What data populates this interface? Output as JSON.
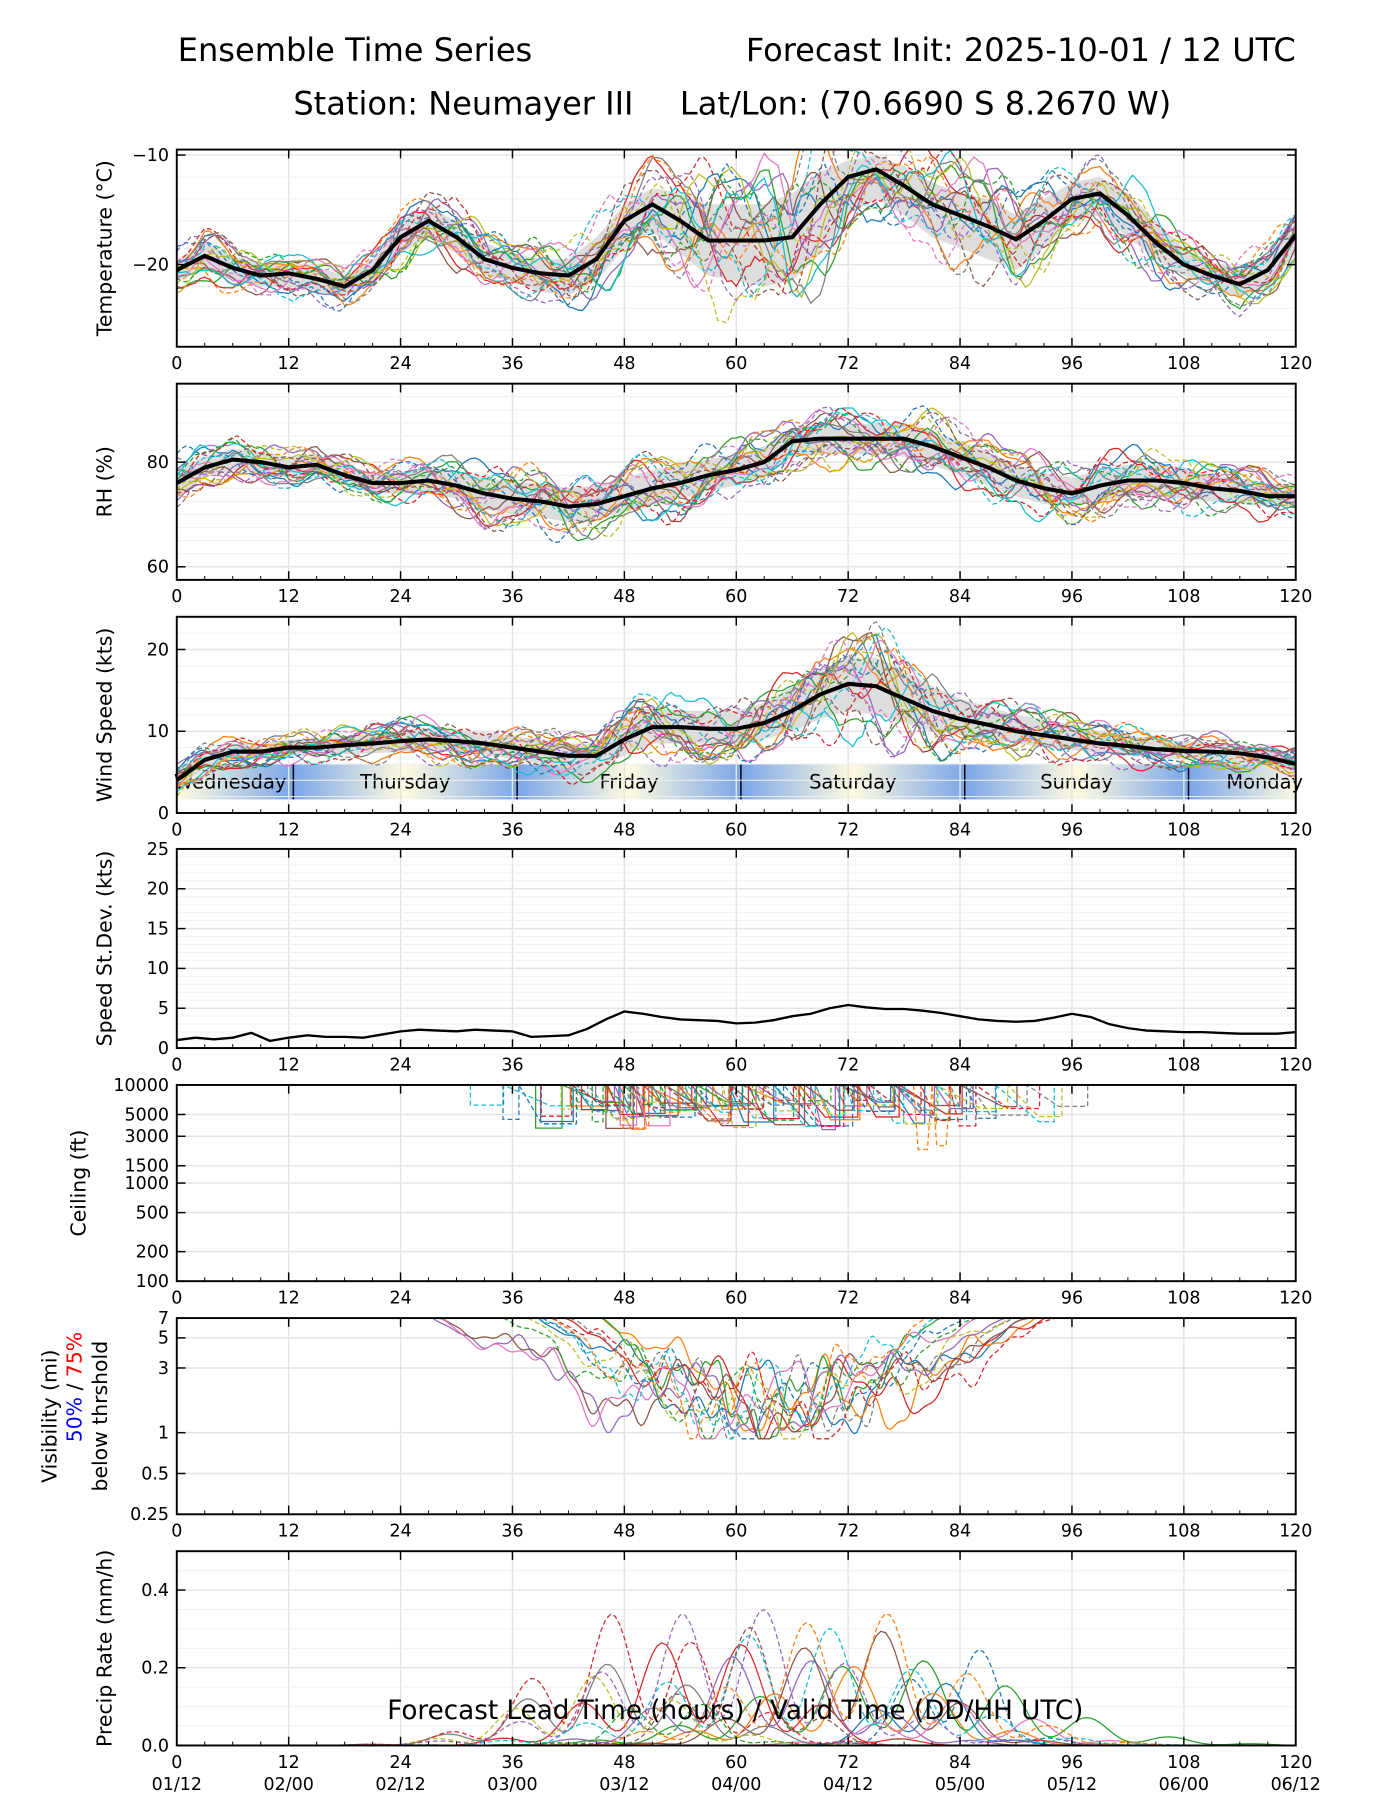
{
  "header": {
    "title": "Ensemble Time Series",
    "init": "Forecast Init: 2025-10-01 / 12 UTC",
    "station": "Station: Neumayer III",
    "latlon": "Lat/Lon: (70.6690 S 8.2670 W)"
  },
  "x_axis": {
    "label": "Forecast Lead Time (hours) / Valid Time (DD/HH UTC)",
    "ticks": [
      0,
      12,
      24,
      36,
      48,
      60,
      72,
      84,
      96,
      108,
      120
    ],
    "valid_time_labels": [
      "01/12",
      "02/00",
      "02/12",
      "03/00",
      "03/12",
      "04/00",
      "04/12",
      "05/00",
      "05/12",
      "06/00",
      "06/12"
    ],
    "range": [
      0,
      120
    ]
  },
  "day_band": {
    "days": [
      "Wednesday",
      "Thursday",
      "Friday",
      "Saturday",
      "Sunday",
      "Monday"
    ],
    "boundaries_hours": [
      12.5,
      36.5,
      60.5,
      84.5,
      108.5
    ],
    "colors": {
      "light": "#fffbe0",
      "blue": "#7aa6e8"
    }
  },
  "colors": {
    "members": [
      "#1f77b4",
      "#ff7f0e",
      "#2ca02c",
      "#d62728",
      "#9467bd",
      "#8c564b",
      "#e377c2",
      "#7f7f7f",
      "#bcbd22",
      "#17becf"
    ],
    "mean": "#000000",
    "spread": "#d9d9d9",
    "vis_50": "#0000ff",
    "vis_75": "#ff0000"
  },
  "chart_data": [
    {
      "type": "line",
      "id": "temperature",
      "ylabel": "Temperature (°C)",
      "ylim": [
        -27.5,
        -9.5
      ],
      "yticks": [
        -20,
        -10
      ],
      "ytick_labels": [
        "−20",
        "−10"
      ],
      "mean": {
        "x": [
          0,
          3,
          6,
          9,
          12,
          15,
          18,
          21,
          24,
          27,
          30,
          33,
          36,
          39,
          42,
          45,
          48,
          51,
          54,
          57,
          60,
          63,
          66,
          69,
          72,
          75,
          78,
          81,
          84,
          87,
          90,
          93,
          96,
          99,
          102,
          105,
          108,
          111,
          114,
          117,
          120
        ],
        "y": [
          -20.5,
          -19.2,
          -20.3,
          -21.0,
          -20.8,
          -21.3,
          -22.0,
          -20.5,
          -17.5,
          -16.0,
          -17.5,
          -19.5,
          -20.3,
          -20.8,
          -21.0,
          -19.5,
          -16.0,
          -14.5,
          -16.0,
          -17.8,
          -17.8,
          -17.8,
          -17.5,
          -14.5,
          -12.0,
          -11.3,
          -12.8,
          -14.5,
          -15.5,
          -16.5,
          -17.7,
          -16.0,
          -14.0,
          -13.5,
          -15.5,
          -18.0,
          -20.0,
          -21.0,
          -21.8,
          -20.5,
          -17.3
        ]
      },
      "spread": {
        "lower": [
          -21.5,
          -20.5,
          -21.5,
          -22.0,
          -22.0,
          -22.5,
          -23.0,
          -21.5,
          -19.0,
          -17.5,
          -19.0,
          -21.0,
          -21.5,
          -22.5,
          -22.8,
          -21.5,
          -18.5,
          -17.0,
          -19.0,
          -21.0,
          -21.5,
          -22.0,
          -21.5,
          -19.0,
          -15.5,
          -14.0,
          -15.5,
          -17.5,
          -18.5,
          -19.5,
          -20.5,
          -18.5,
          -16.0,
          -15.5,
          -17.5,
          -19.5,
          -21.0,
          -22.0,
          -23.0,
          -22.0,
          -19.0
        ],
        "upper": [
          -19.5,
          -18.0,
          -19.2,
          -20.0,
          -19.8,
          -20.2,
          -21.0,
          -19.5,
          -16.0,
          -14.8,
          -16.0,
          -18.0,
          -19.0,
          -19.5,
          -19.5,
          -17.5,
          -14.5,
          -13.0,
          -13.5,
          -14.5,
          -14.5,
          -14.5,
          -13.5,
          -11.5,
          -10.5,
          -10.0,
          -11.0,
          -12.5,
          -13.5,
          -14.0,
          -15.5,
          -14.0,
          -12.5,
          -12.0,
          -13.5,
          -16.0,
          -18.5,
          -19.8,
          -20.3,
          -19.3,
          -16.0
        ]
      }
    },
    {
      "type": "line",
      "id": "rh",
      "ylabel": "RH (%)",
      "ylim": [
        57.5,
        95
      ],
      "yticks": [
        60,
        80
      ],
      "ytick_labels": [
        "60",
        "80"
      ],
      "mean": {
        "x": [
          0,
          3,
          6,
          9,
          12,
          15,
          18,
          21,
          24,
          27,
          30,
          33,
          36,
          39,
          42,
          45,
          48,
          51,
          54,
          57,
          60,
          63,
          66,
          69,
          72,
          75,
          78,
          81,
          84,
          87,
          90,
          93,
          96,
          99,
          102,
          105,
          108,
          111,
          114,
          117,
          120
        ],
        "y": [
          76.0,
          79.0,
          80.5,
          80.0,
          79.0,
          79.5,
          77.5,
          76.0,
          76.0,
          76.5,
          75.5,
          74.0,
          73.0,
          72.5,
          71.5,
          72.0,
          73.5,
          75.0,
          76.0,
          77.5,
          78.5,
          80.0,
          84.0,
          84.5,
          84.5,
          84.5,
          84.5,
          83.0,
          81.0,
          79.0,
          76.5,
          75.0,
          74.0,
          75.5,
          76.5,
          76.5,
          76.0,
          75.0,
          74.5,
          73.5,
          73.5
        ]
      },
      "spread": {
        "lower": [
          73.0,
          77.0,
          78.5,
          78.0,
          77.0,
          77.5,
          75.5,
          74.0,
          74.0,
          74.0,
          73.0,
          71.0,
          70.0,
          69.5,
          68.5,
          69.0,
          70.5,
          72.0,
          73.0,
          74.5,
          75.5,
          77.0,
          81.0,
          81.5,
          81.5,
          81.5,
          81.0,
          79.5,
          77.5,
          75.5,
          73.5,
          72.0,
          71.5,
          72.5,
          73.5,
          73.5,
          73.0,
          72.5,
          72.0,
          71.5,
          71.5
        ],
        "upper": [
          79.0,
          81.0,
          82.5,
          82.0,
          81.0,
          81.5,
          79.5,
          78.0,
          78.0,
          79.0,
          78.0,
          77.0,
          76.0,
          76.0,
          75.0,
          75.5,
          77.0,
          78.5,
          79.5,
          80.5,
          81.5,
          83.0,
          86.5,
          87.0,
          87.0,
          87.5,
          87.5,
          86.0,
          84.0,
          82.0,
          79.5,
          78.0,
          77.0,
          78.5,
          79.5,
          79.5,
          79.0,
          77.5,
          77.0,
          76.0,
          75.5
        ]
      }
    },
    {
      "type": "line",
      "id": "wind",
      "ylabel": "Wind Speed (kts)",
      "ylim": [
        0,
        24
      ],
      "yticks": [
        0,
        10,
        20
      ],
      "ytick_labels": [
        "0",
        "10",
        "20"
      ],
      "mean": {
        "x": [
          0,
          3,
          6,
          9,
          12,
          15,
          18,
          21,
          24,
          27,
          30,
          33,
          36,
          39,
          42,
          45,
          48,
          51,
          54,
          57,
          60,
          63,
          66,
          69,
          72,
          75,
          78,
          81,
          84,
          87,
          90,
          93,
          96,
          99,
          102,
          105,
          108,
          111,
          114,
          117,
          120
        ],
        "y": [
          4.0,
          6.5,
          7.5,
          7.5,
          8.0,
          8.0,
          8.3,
          8.5,
          8.8,
          9.0,
          8.8,
          8.5,
          8.0,
          7.5,
          7.0,
          7.0,
          9.0,
          10.5,
          10.5,
          10.3,
          10.3,
          11.0,
          12.5,
          14.5,
          15.8,
          15.5,
          14.0,
          12.5,
          11.5,
          10.8,
          10.0,
          9.5,
          9.0,
          8.5,
          8.2,
          7.8,
          7.6,
          7.5,
          7.3,
          6.8,
          6.0
        ]
      },
      "spread": {
        "lower": [
          3.0,
          5.5,
          6.5,
          6.5,
          7.0,
          7.0,
          7.2,
          7.3,
          7.5,
          7.6,
          7.4,
          7.1,
          6.6,
          6.0,
          5.5,
          5.5,
          7.0,
          8.5,
          8.5,
          8.5,
          8.5,
          9.0,
          10.0,
          11.5,
          12.5,
          12.0,
          11.0,
          10.0,
          9.5,
          9.0,
          8.5,
          8.0,
          7.7,
          7.3,
          7.0,
          6.7,
          6.5,
          6.4,
          6.2,
          5.8,
          5.0
        ],
        "upper": [
          5.0,
          7.5,
          8.5,
          8.5,
          9.0,
          9.0,
          9.4,
          9.7,
          10.1,
          10.4,
          10.2,
          9.9,
          9.4,
          9.0,
          8.5,
          8.5,
          11.5,
          13.0,
          12.5,
          12.5,
          12.5,
          13.5,
          15.5,
          17.5,
          19.0,
          19.0,
          17.5,
          15.5,
          14.0,
          13.0,
          12.0,
          11.5,
          10.8,
          10.0,
          9.5,
          9.0,
          8.8,
          8.6,
          8.4,
          7.8,
          7.0
        ]
      }
    },
    {
      "type": "line",
      "id": "speed_stdev",
      "ylabel": "Speed St.Dev. (kts)",
      "ylim": [
        0,
        25
      ],
      "yticks": [
        0,
        5,
        10,
        15,
        20,
        25
      ],
      "ytick_labels": [
        "0",
        "5",
        "10",
        "15",
        "20",
        "25"
      ],
      "series": [
        {
          "name": "stdev",
          "x": [
            0,
            2,
            4,
            6,
            8,
            10,
            12,
            14,
            16,
            18,
            20,
            22,
            24,
            26,
            28,
            30,
            32,
            34,
            36,
            38,
            40,
            42,
            44,
            46,
            48,
            50,
            52,
            54,
            56,
            58,
            60,
            62,
            64,
            66,
            68,
            70,
            72,
            74,
            76,
            78,
            80,
            82,
            84,
            86,
            88,
            90,
            92,
            94,
            96,
            98,
            100,
            102,
            104,
            106,
            108,
            110,
            112,
            114,
            116,
            118,
            120
          ],
          "values": [
            1.0,
            1.3,
            1.1,
            1.3,
            1.9,
            0.9,
            1.3,
            1.6,
            1.4,
            1.4,
            1.3,
            1.7,
            2.1,
            2.3,
            2.2,
            2.1,
            2.3,
            2.2,
            2.1,
            1.4,
            1.5,
            1.6,
            2.4,
            3.6,
            4.6,
            4.3,
            3.9,
            3.6,
            3.5,
            3.4,
            3.1,
            3.2,
            3.5,
            4.0,
            4.3,
            5.0,
            5.4,
            5.1,
            4.9,
            4.9,
            4.7,
            4.4,
            4.0,
            3.6,
            3.4,
            3.3,
            3.4,
            3.8,
            4.3,
            3.9,
            3.0,
            2.5,
            2.2,
            2.1,
            2.0,
            2.0,
            1.9,
            1.8,
            1.8,
            1.8,
            2.0
          ]
        }
      ]
    },
    {
      "type": "line",
      "id": "ceiling",
      "ylabel": "Ceiling (ft)",
      "yscale": "log",
      "ylim": [
        100,
        10000
      ],
      "yticks": [
        100,
        200,
        500,
        1000,
        1500,
        3000,
        5000,
        10000
      ],
      "ytick_labels": [
        "100",
        "200",
        "500",
        "1000",
        "1500",
        "3000",
        "5000",
        "10000"
      ]
    },
    {
      "type": "line",
      "id": "visibility",
      "ylabel": "Visibility (mi)",
      "ylabel_parts": [
        "50%",
        "/",
        "75%",
        "below thrshold"
      ],
      "yscale": "log",
      "ylim": [
        0.25,
        7
      ],
      "yticks": [
        0.25,
        0.5,
        1,
        3,
        5,
        7
      ],
      "ytick_labels": [
        "0.25",
        "0.5",
        "1",
        "3",
        "5",
        "7"
      ]
    },
    {
      "type": "line",
      "id": "precip",
      "ylabel": "Precip Rate (mm/h)",
      "ylim": [
        0,
        0.5
      ],
      "yticks": [
        0,
        0.2,
        0.4
      ],
      "ytick_labels": [
        "0.0",
        "0.2",
        "0.4"
      ]
    }
  ]
}
